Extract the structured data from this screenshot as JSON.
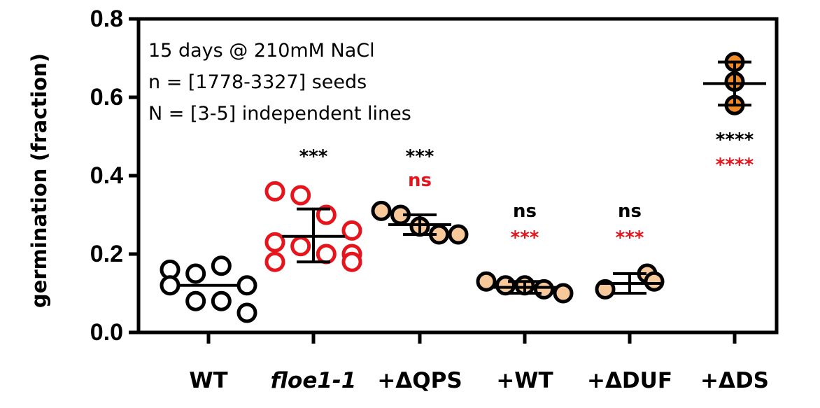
{
  "chart_data": {
    "type": "scatter",
    "ylabel": "germination (fraction)",
    "ylim": [
      0,
      0.8
    ],
    "yticks": [
      "0.0",
      "0.2",
      "0.4",
      "0.6",
      "0.8"
    ],
    "annotations": [
      "15 days @ 210mM NaCl",
      "n = [1778-3327] seeds",
      "N = [3-5] independent lines"
    ],
    "colors": {
      "black": "#000000",
      "red": "#e8141c",
      "peach": "#f7c99a",
      "orange": "#f08a24",
      "white": "#ffffff"
    },
    "categories": [
      {
        "label": "WT",
        "italic": false,
        "label_color": "#000000",
        "stroke": "#000000",
        "fill": "#ffffff",
        "points": [
          0.16,
          0.15,
          0.17,
          0.12,
          0.12,
          0.08,
          0.08,
          0.05
        ],
        "mean": 0.12,
        "sd_low": null,
        "sd_high": null,
        "sig_top": "",
        "sig_bottom": ""
      },
      {
        "label": "floe1-1",
        "italic": true,
        "label_color": "#e8141c",
        "stroke": "#e8141c",
        "fill": "#ffffff",
        "points": [
          0.36,
          0.35,
          0.3,
          0.26,
          0.23,
          0.22,
          0.2,
          0.2,
          0.18,
          0.18
        ],
        "mean": 0.245,
        "sd_low": 0.18,
        "sd_high": 0.315,
        "sig_top": "***",
        "sig_bottom": ""
      },
      {
        "label": "+ΔQPS",
        "italic": false,
        "label_color": "#000000",
        "stroke": "#000000",
        "fill": "#f7c99a",
        "points": [
          0.31,
          0.3,
          0.27,
          0.25,
          0.25
        ],
        "mean": 0.275,
        "sd_low": 0.25,
        "sd_high": 0.3,
        "sig_top": "***",
        "sig_bottom": "ns"
      },
      {
        "label": "+WT",
        "italic": false,
        "label_color": "#000000",
        "stroke": "#000000",
        "fill": "#f7c99a",
        "points": [
          0.13,
          0.12,
          0.12,
          0.11,
          0.1
        ],
        "mean": 0.115,
        "sd_low": 0.1,
        "sd_high": 0.13,
        "sig_top": "ns",
        "sig_bottom": "***"
      },
      {
        "label": "+ΔDUF",
        "italic": false,
        "label_color": "#000000",
        "stroke": "#000000",
        "fill": "#f7c99a",
        "points": [
          0.15,
          0.13,
          0.11
        ],
        "mean": 0.125,
        "sd_low": 0.1,
        "sd_high": 0.15,
        "sig_top": "ns",
        "sig_bottom": "***"
      },
      {
        "label": "+ΔDS",
        "italic": false,
        "label_color": "#000000",
        "stroke": "#000000",
        "fill": "#f08a24",
        "points": [
          0.69,
          0.64,
          0.58
        ],
        "mean": 0.635,
        "sd_low": 0.58,
        "sd_high": 0.69,
        "sig_top": "****",
        "sig_bottom": "****"
      }
    ]
  }
}
